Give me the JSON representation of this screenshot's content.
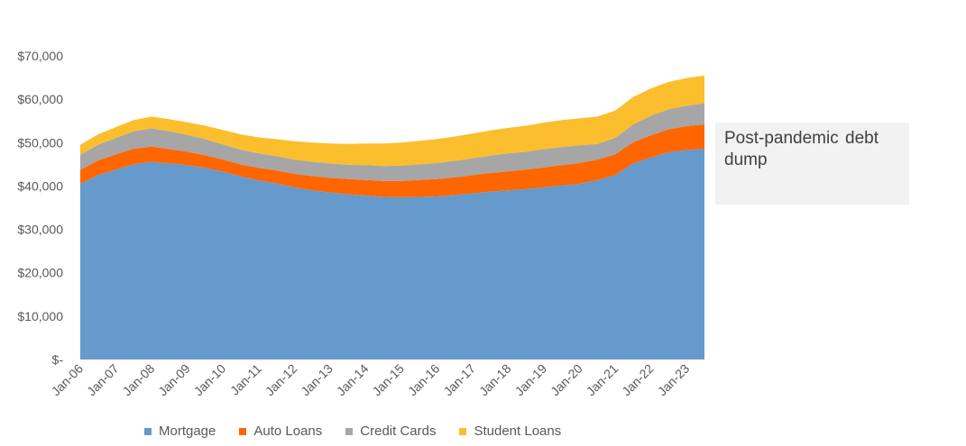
{
  "chart_data": {
    "type": "area",
    "stacked": true,
    "x": [
      "Jan-06",
      "Jul-06",
      "Jan-07",
      "Jul-07",
      "Jan-08",
      "Jul-08",
      "Jan-09",
      "Jul-09",
      "Jan-10",
      "Jul-10",
      "Jan-11",
      "Jul-11",
      "Jan-12",
      "Jul-12",
      "Jan-13",
      "Jul-13",
      "Jan-14",
      "Jul-14",
      "Jan-15",
      "Jul-15",
      "Jan-16",
      "Jul-16",
      "Jan-17",
      "Jul-17",
      "Jan-18",
      "Jul-18",
      "Jan-19",
      "Jul-19",
      "Jan-20",
      "Jul-20",
      "Jan-21",
      "Jul-21",
      "Jan-22",
      "Jul-22",
      "Jan-23",
      "Jul-23"
    ],
    "x_tick_labels": [
      "Jan-06",
      "Jan-07",
      "Jan-08",
      "Jan-09",
      "Jan-10",
      "Jan-11",
      "Jan-12",
      "Jan-13",
      "Jan-14",
      "Jan-15",
      "Jan-16",
      "Jan-17",
      "Jan-18",
      "Jan-19",
      "Jan-20",
      "Jan-21",
      "Jan-22",
      "Jan-23"
    ],
    "y_tick_labels": [
      "$-",
      "$10,000",
      "$20,000",
      "$30,000",
      "$40,000",
      "$50,000",
      "$60,000",
      "$70,000"
    ],
    "ylim": [
      0,
      70000
    ],
    "grid": false,
    "legend_position": "bottom",
    "series": [
      {
        "name": "Mortgage",
        "color": "#6699cc",
        "values": [
          40500,
          42500,
          43800,
          45000,
          45600,
          45200,
          44800,
          44200,
          43300,
          42200,
          41300,
          40600,
          39700,
          39000,
          38500,
          38100,
          37800,
          37500,
          37400,
          37500,
          37600,
          37900,
          38300,
          38700,
          39000,
          39300,
          39700,
          40100,
          40500,
          41400,
          42500,
          45200,
          46600,
          47800,
          48300,
          48600
        ]
      },
      {
        "name": "Auto Loans",
        "color": "#ff6600",
        "values": [
          3200,
          3400,
          3500,
          3600,
          3500,
          3300,
          3100,
          2900,
          2800,
          2800,
          2900,
          3000,
          3100,
          3300,
          3400,
          3500,
          3600,
          3700,
          3800,
          3900,
          4000,
          4100,
          4200,
          4300,
          4400,
          4500,
          4600,
          4700,
          4800,
          4700,
          4800,
          4900,
          5100,
          5300,
          5500,
          5600
        ]
      },
      {
        "name": "Credit Cards",
        "color": "#a6a6a6",
        "values": [
          3500,
          3600,
          3800,
          4000,
          4200,
          4100,
          3900,
          3700,
          3500,
          3400,
          3300,
          3300,
          3300,
          3300,
          3300,
          3300,
          3400,
          3400,
          3500,
          3600,
          3700,
          3800,
          3900,
          4000,
          4100,
          4100,
          4200,
          4200,
          4100,
          3600,
          3800,
          4100,
          4500,
          4600,
          4700,
          4900
        ]
      },
      {
        "name": "Student Loans",
        "color": "#fbbf2d",
        "values": [
          2300,
          2400,
          2500,
          2600,
          2700,
          2800,
          2900,
          3100,
          3300,
          3500,
          3700,
          3900,
          4200,
          4400,
          4600,
          4800,
          5000,
          5200,
          5300,
          5400,
          5500,
          5600,
          5700,
          5800,
          5900,
          6000,
          6100,
          6200,
          6200,
          6300,
          6300,
          6300,
          6300,
          6300,
          6400,
          6400
        ]
      }
    ]
  },
  "legend": {
    "items": [
      {
        "label": "Mortgage",
        "color": "#6699cc"
      },
      {
        "label": "Auto Loans",
        "color": "#ff6600"
      },
      {
        "label": "Credit Cards",
        "color": "#a6a6a6"
      },
      {
        "label": "Student Loans",
        "color": "#fbbf2d"
      }
    ]
  },
  "annotation": {
    "text": "Post-pandemic debt dump"
  }
}
